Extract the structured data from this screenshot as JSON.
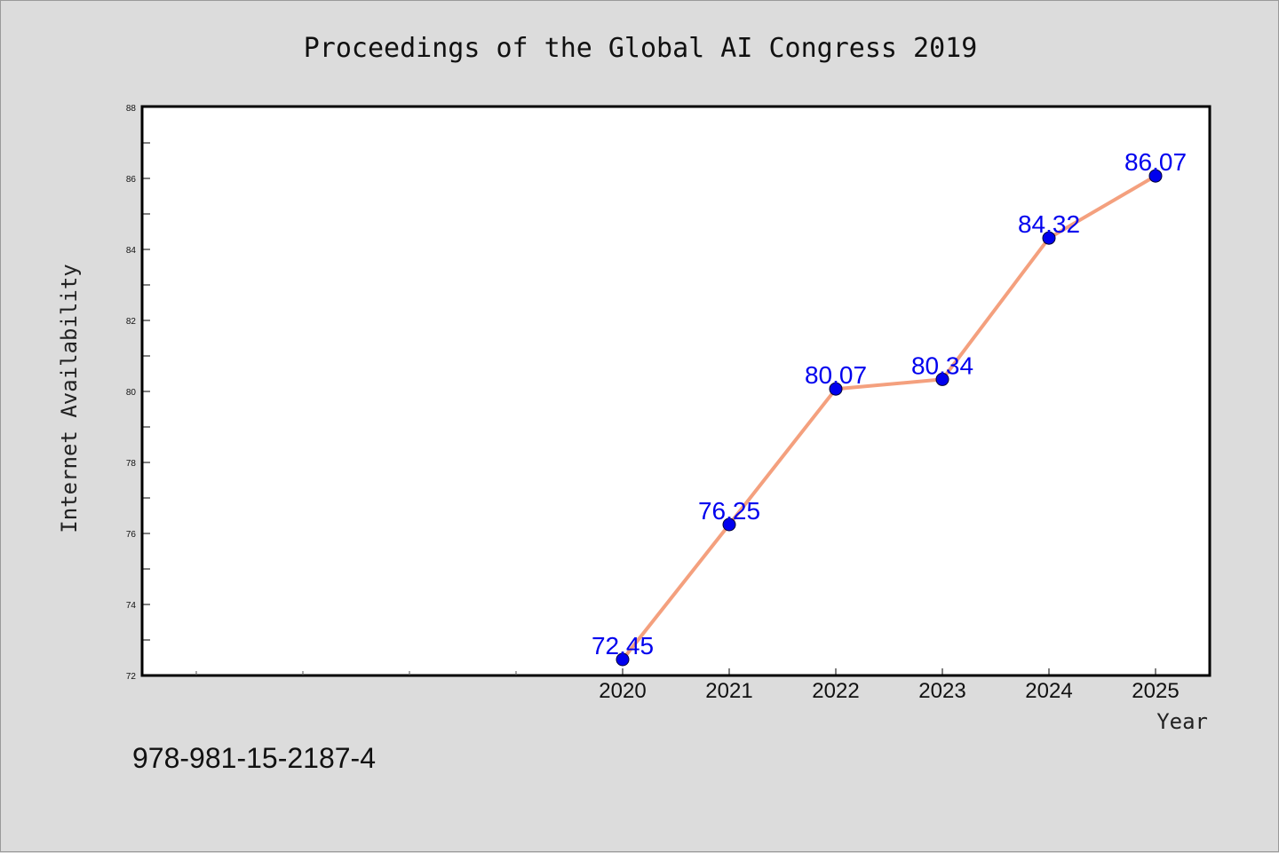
{
  "chart_data": {
    "type": "line",
    "title": "Proceedings of the Global AI Congress 2019",
    "xlabel": "Year",
    "ylabel": "Internet Availability",
    "x": [
      "2020",
      "2021",
      "2022",
      "2023",
      "2024",
      "2025"
    ],
    "series": [
      {
        "values": [
          72.45,
          76.25,
          80.07,
          80.34,
          84.32,
          86.07
        ]
      }
    ],
    "data_labels": [
      "72.45",
      "76.25",
      "80.07",
      "80.34",
      "84.32",
      "86.07"
    ],
    "y_ticks": [
      "72",
      "74",
      "76",
      "78",
      "80",
      "82",
      "84",
      "86",
      "88"
    ],
    "ylim": [
      72,
      88
    ],
    "grid": false,
    "line_color": "#f4a07e",
    "marker_color": "#0000ee"
  },
  "footer": {
    "isbn": "978-981-15-2187-4"
  }
}
